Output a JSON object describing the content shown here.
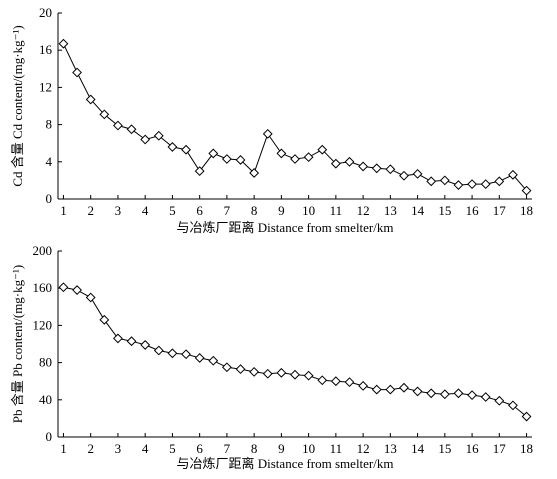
{
  "chart_data": [
    {
      "type": "line",
      "title": "",
      "xlabel": "与冶炼厂距离 Distance from smelter/km",
      "ylabel": "Cd 含量 Cd content/(mg·kg⁻¹)",
      "xlim": [
        0.8,
        18.2
      ],
      "ylim": [
        0,
        20
      ],
      "xticks": [
        1,
        2,
        3,
        4,
        5,
        6,
        7,
        8,
        9,
        10,
        11,
        12,
        13,
        14,
        15,
        16,
        17,
        18
      ],
      "yticks": [
        0,
        4,
        8,
        12,
        16,
        20
      ],
      "grid": false,
      "marker": "diamond",
      "x": [
        1,
        1.5,
        2,
        2.5,
        3,
        3.5,
        4,
        4.5,
        5,
        5.5,
        6,
        6.5,
        7,
        7.5,
        8,
        8.5,
        9,
        9.5,
        10,
        10.5,
        11,
        11.5,
        12,
        12.5,
        13,
        13.5,
        14,
        14.5,
        15,
        15.5,
        16,
        16.5,
        17,
        17.5,
        18
      ],
      "values": [
        16.7,
        13.6,
        10.7,
        9.1,
        7.9,
        7.5,
        6.4,
        6.8,
        5.6,
        5.3,
        3.0,
        4.9,
        4.3,
        4.2,
        2.8,
        7.0,
        4.9,
        4.3,
        4.5,
        5.3,
        3.8,
        4.0,
        3.5,
        3.3,
        3.2,
        2.5,
        2.7,
        1.9,
        2.0,
        1.5,
        1.6,
        1.6,
        1.9,
        2.6,
        0.9
      ]
    },
    {
      "type": "line",
      "title": "",
      "xlabel": "与冶炼厂距离 Distance from smelter/km",
      "ylabel": "Pb 含量 Pb content/(mg·kg⁻¹)",
      "xlim": [
        0.8,
        18.2
      ],
      "ylim": [
        0,
        200
      ],
      "xticks": [
        1,
        2,
        3,
        4,
        5,
        6,
        7,
        8,
        9,
        10,
        11,
        12,
        13,
        14,
        15,
        16,
        17,
        18
      ],
      "yticks": [
        0,
        40,
        80,
        120,
        160,
        200
      ],
      "grid": false,
      "marker": "diamond",
      "x": [
        1,
        1.5,
        2,
        2.5,
        3,
        3.5,
        4,
        4.5,
        5,
        5.5,
        6,
        6.5,
        7,
        7.5,
        8,
        8.5,
        9,
        9.5,
        10,
        10.5,
        11,
        11.5,
        12,
        12.5,
        13,
        13.5,
        14,
        14.5,
        15,
        15.5,
        16,
        16.5,
        17,
        17.5,
        18
      ],
      "values": [
        161,
        158,
        150,
        126,
        106,
        103,
        99,
        93,
        90,
        89,
        85,
        82,
        75,
        73,
        70,
        68,
        69,
        67,
        66,
        61,
        60,
        59,
        55,
        51,
        51,
        53,
        49,
        47,
        46,
        47,
        45,
        43,
        39,
        34,
        22
      ]
    }
  ]
}
